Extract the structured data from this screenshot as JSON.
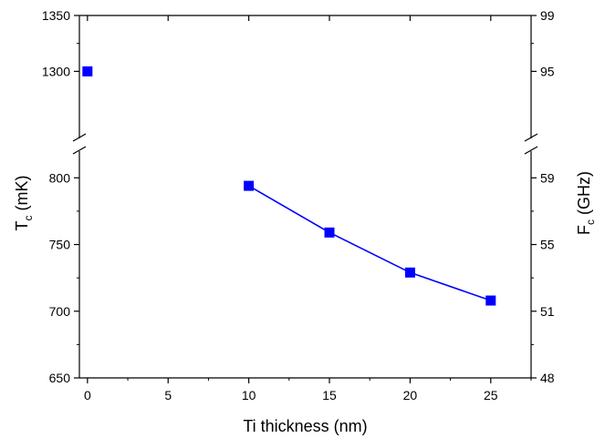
{
  "chart_data": {
    "type": "scatter",
    "xlabel": "Ti thickness (nm)",
    "ylabel": {
      "main": "T",
      "sub": "c",
      "unit": " (mK)"
    },
    "y2label": {
      "main": "F",
      "sub": "c",
      "unit": " (GHz)"
    },
    "xlim": [
      -0.5,
      27.5
    ],
    "xticks": [
      "0",
      "5",
      "10",
      "15",
      "20",
      "25"
    ],
    "xtick_values": [
      0,
      5,
      10,
      15,
      20,
      25
    ],
    "y_axis_broken": true,
    "y_lower_range": [
      650,
      820
    ],
    "y_upper_range": [
      1240,
      1350
    ],
    "yticks_left": [
      "650",
      "700",
      "750",
      "800",
      "1300",
      "1350"
    ],
    "ytick_values_left": [
      650,
      700,
      750,
      800,
      1300,
      1350
    ],
    "yticks_right": [
      "48",
      "51",
      "55",
      "59",
      "95",
      "99"
    ],
    "marker_color": "#0000ff",
    "line_color": "#0000ff",
    "series": [
      {
        "x": [
          0,
          10,
          15,
          20,
          25
        ],
        "y": [
          1300,
          794,
          759,
          729,
          708
        ],
        "line_connects_indices": [
          1,
          2,
          3,
          4
        ]
      }
    ]
  }
}
